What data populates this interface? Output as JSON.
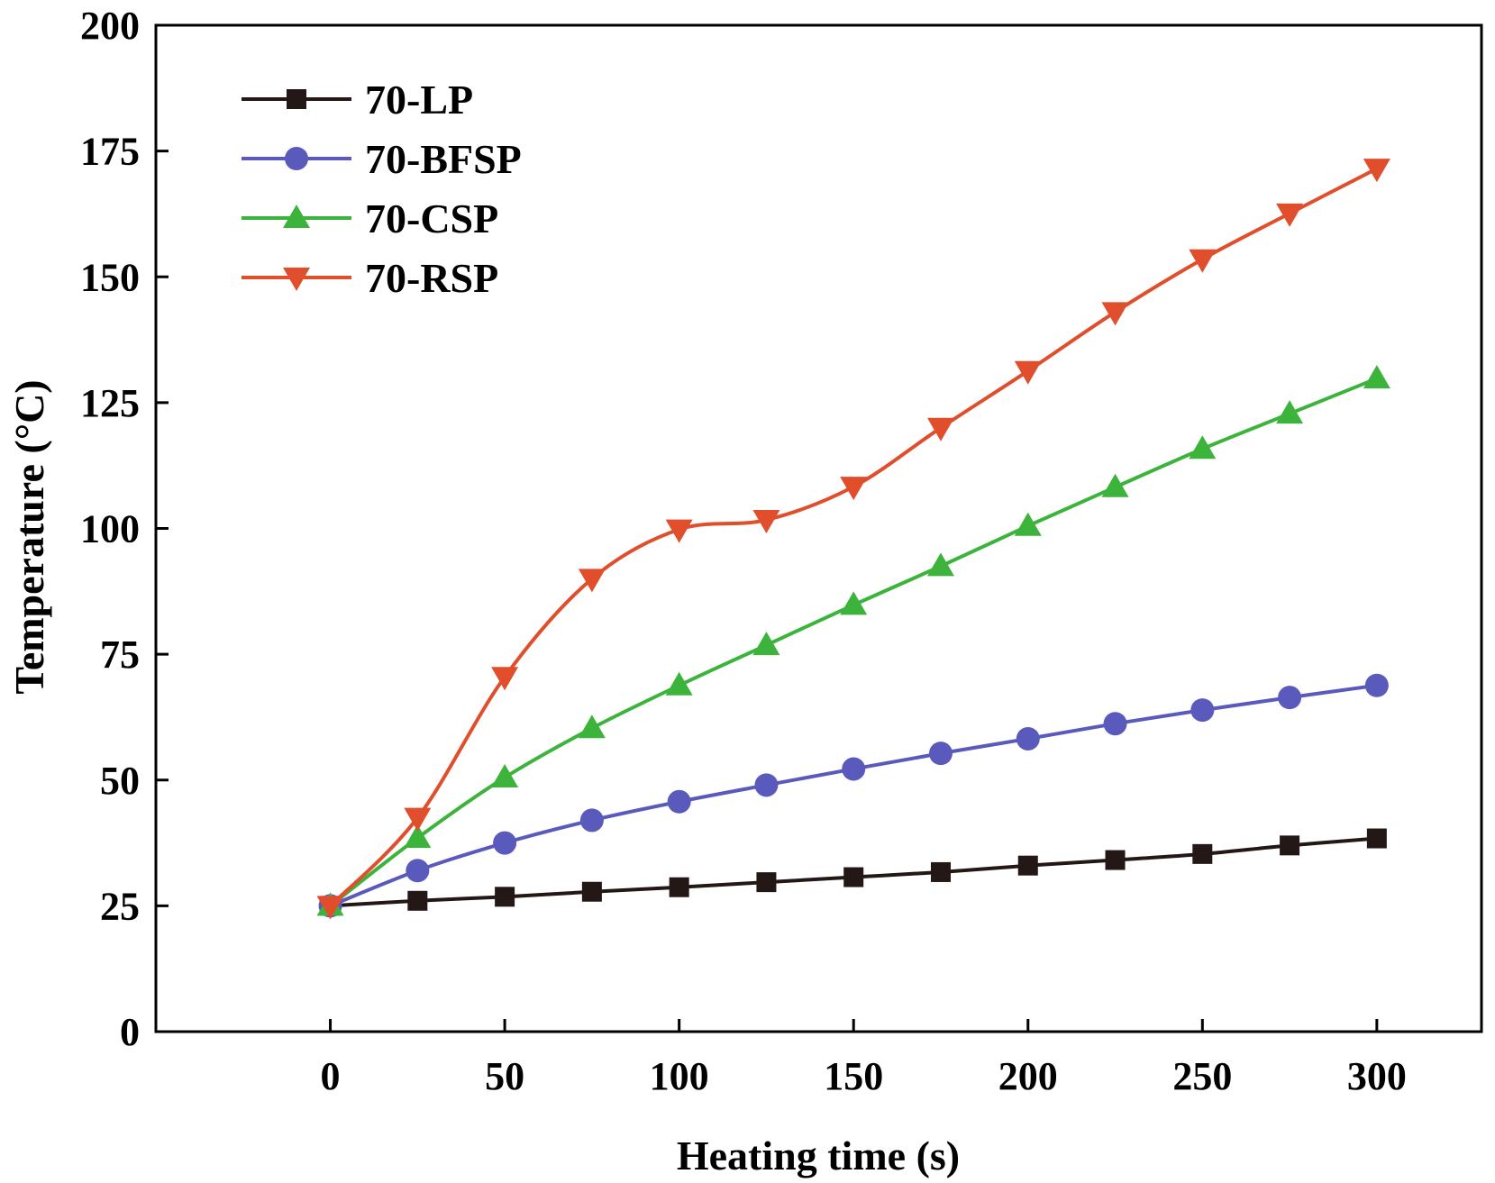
{
  "chart_data": {
    "type": "line",
    "title": "",
    "xlabel": "Heating time (s)",
    "ylabel": "Temperature (°C)",
    "xlim": [
      -50,
      330
    ],
    "ylim": [
      0,
      200
    ],
    "xticks": [
      0,
      50,
      100,
      150,
      200,
      250,
      300
    ],
    "yticks": [
      0,
      25,
      50,
      75,
      100,
      125,
      150,
      175,
      200
    ],
    "grid": false,
    "legend_position": "top-left",
    "x": [
      0,
      25,
      50,
      75,
      100,
      125,
      150,
      175,
      200,
      225,
      250,
      275,
      300
    ],
    "series": [
      {
        "name": "70-LP",
        "color": "#231815",
        "marker": "square",
        "values": [
          25,
          26,
          26.8,
          27.8,
          28.7,
          29.7,
          30.7,
          31.7,
          33,
          34.1,
          35.3,
          37,
          38.4
        ]
      },
      {
        "name": "70-BFSP",
        "color": "#5A5ABD",
        "marker": "circle",
        "values": [
          25,
          32,
          37.5,
          42,
          45.7,
          49,
          52.2,
          55.3,
          58.2,
          61.2,
          63.9,
          66.4,
          68.8
        ]
      },
      {
        "name": "70-CSP",
        "color": "#3CB43C",
        "marker": "triangle-up",
        "values": [
          25,
          38.5,
          50.5,
          60.3,
          68.8,
          76.8,
          84.8,
          92.5,
          100.5,
          108.2,
          115.8,
          122.8,
          129.8
        ]
      },
      {
        "name": "70-RSP",
        "color": "#E04E2B",
        "marker": "triangle-down",
        "values": [
          25,
          42.5,
          70.5,
          90,
          99.8,
          101.7,
          108.3,
          120,
          131.3,
          143,
          153.5,
          162.6,
          171.5
        ]
      }
    ]
  }
}
